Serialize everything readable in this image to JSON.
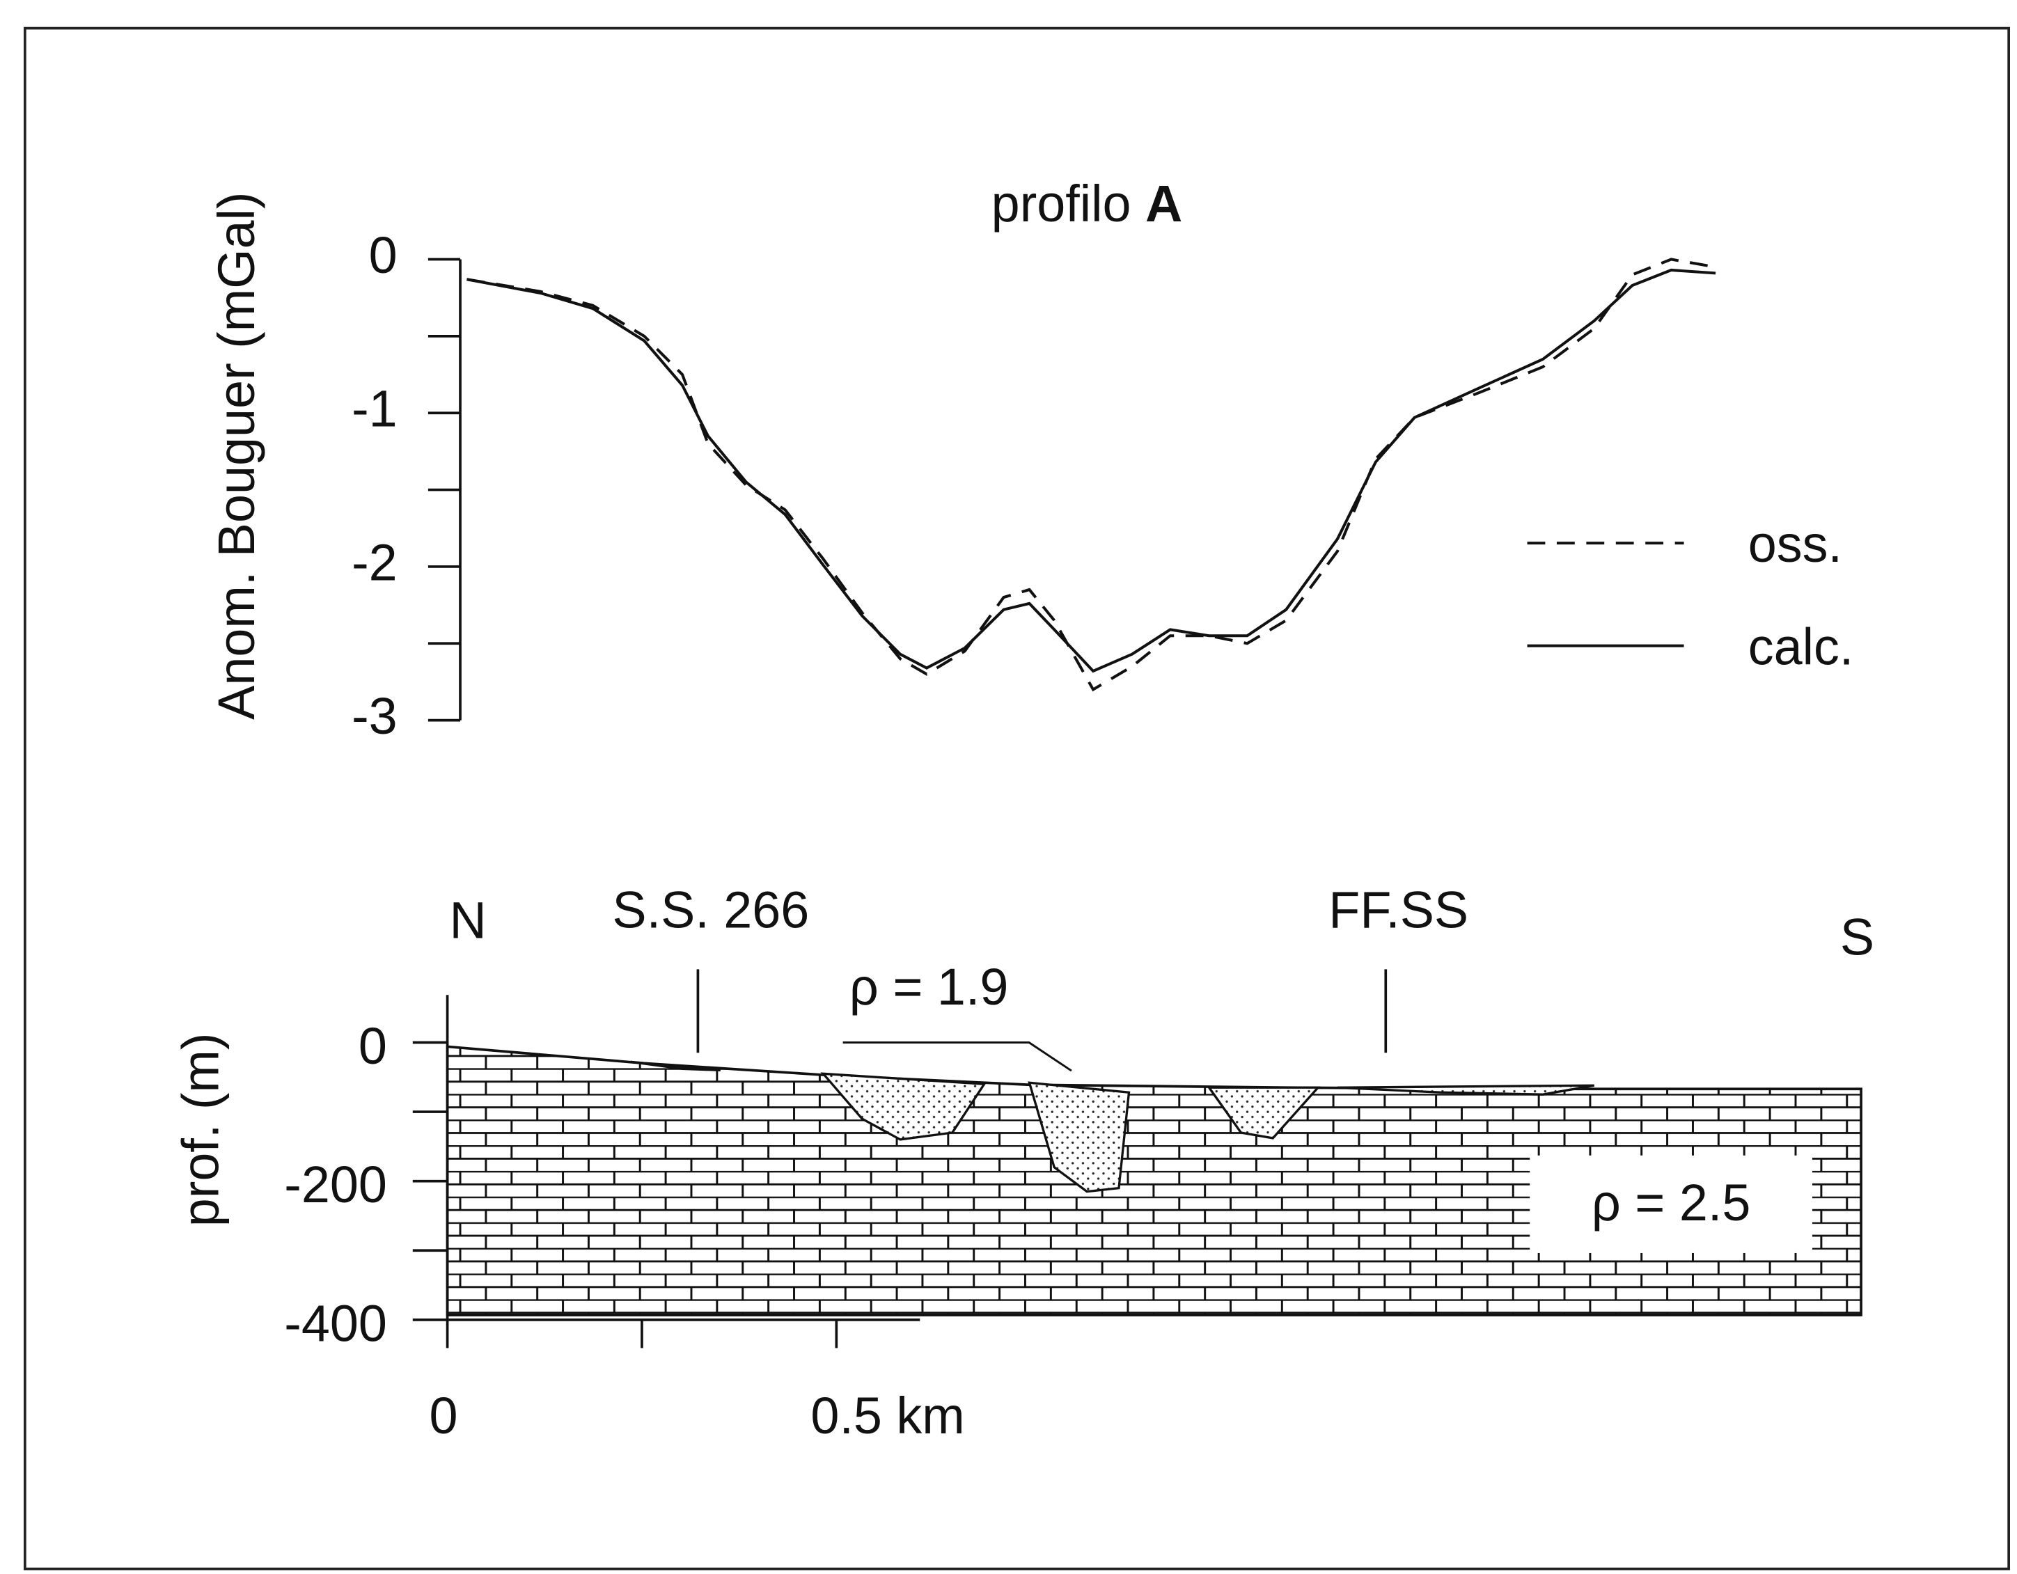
{
  "chart_data": [
    {
      "type": "line",
      "title": [
        "profilo",
        "A"
      ],
      "y_label": "Anom. Bouguer (mGal)",
      "x": [
        0.025,
        0.12,
        0.187,
        0.253,
        0.302,
        0.335,
        0.384,
        0.434,
        0.483,
        0.533,
        0.582,
        0.616,
        0.665,
        0.715,
        0.748,
        0.78,
        0.83,
        0.88,
        0.929,
        0.979,
        1.028,
        1.078,
        1.144,
        1.193,
        1.243,
        1.325,
        1.408,
        1.474,
        1.523,
        1.573,
        1.63
      ],
      "series": [
        {
          "name": "oss.",
          "color": "#111111",
          "style": "dashed",
          "values": [
            -0.13,
            -0.21,
            -0.3,
            -0.5,
            -0.75,
            -1.2,
            -1.47,
            -1.63,
            -1.95,
            -2.3,
            -2.6,
            -2.7,
            -2.55,
            -2.2,
            -2.15,
            -2.35,
            -2.8,
            -2.65,
            -2.45,
            -2.45,
            -2.5,
            -2.35,
            -1.9,
            -1.3,
            -1.03,
            -0.87,
            -0.7,
            -0.45,
            -0.1,
            0.0,
            -0.05
          ]
        },
        {
          "name": "calc.",
          "color": "#111111",
          "style": "solid",
          "values": [
            -0.13,
            -0.22,
            -0.32,
            -0.53,
            -0.82,
            -1.15,
            -1.45,
            -1.66,
            -1.99,
            -2.32,
            -2.57,
            -2.66,
            -2.53,
            -2.28,
            -2.24,
            -2.41,
            -2.68,
            -2.57,
            -2.41,
            -2.45,
            -2.45,
            -2.28,
            -1.82,
            -1.32,
            -1.03,
            -0.84,
            -0.65,
            -0.4,
            -0.17,
            -0.07,
            -0.09
          ]
        }
      ],
      "xlim": [
        0,
        1.817
      ],
      "ylim": [
        -3,
        0
      ],
      "yticks": [
        0,
        -1,
        -2,
        -3
      ],
      "yticks_minor": [
        -0.5,
        -1.5,
        -2.5
      ]
    },
    {
      "type": "section",
      "y_label": "prof. (m)",
      "north": "N",
      "south": "S",
      "surface": {
        "x": [
          0,
          0.253,
          0.5,
          0.748,
          1.078,
          1.408,
          1.817
        ],
        "depth": [
          -6,
          -30,
          -48,
          -61,
          -65,
          -67,
          -67
        ]
      },
      "base": -393,
      "rock_label": "ρ = 2.5",
      "body_label": "ρ = 1.9",
      "bodies": [
        {
          "x": [
            0.236,
            0.302,
            0.351
          ],
          "depth": [
            -28,
            -38,
            -40
          ]
        },
        {
          "x": [
            0.483,
            0.533,
            0.582,
            0.649,
            0.69
          ],
          "depth": [
            -45,
            -110,
            -140,
            -130,
            -60
          ]
        },
        {
          "x": [
            0.748,
            0.78,
            0.822,
            0.863,
            0.876
          ],
          "depth": [
            -58,
            -180,
            -215,
            -210,
            -72
          ]
        },
        {
          "x": [
            0.979,
            1.02,
            1.061,
            1.119
          ],
          "depth": [
            -65,
            -130,
            -138,
            -65
          ]
        },
        {
          "x": [
            1.144,
            1.276,
            1.408,
            1.474
          ],
          "depth": [
            -65,
            -72,
            -75,
            -62
          ]
        }
      ],
      "markers": [
        {
          "label": "S.S. 266",
          "x": 0.322
        },
        {
          "label": "FF.SS",
          "x": 1.206
        }
      ],
      "xlim": [
        0,
        1.817
      ],
      "ylim": [
        -400,
        0
      ],
      "yticks": [
        0,
        -200,
        -400
      ],
      "yticks_minor": [
        -100,
        -300
      ],
      "xticks": [
        0,
        {
          "value": 0.5,
          "label": "0.5 km"
        }
      ],
      "xticks_minor": [
        0.25
      ]
    }
  ]
}
